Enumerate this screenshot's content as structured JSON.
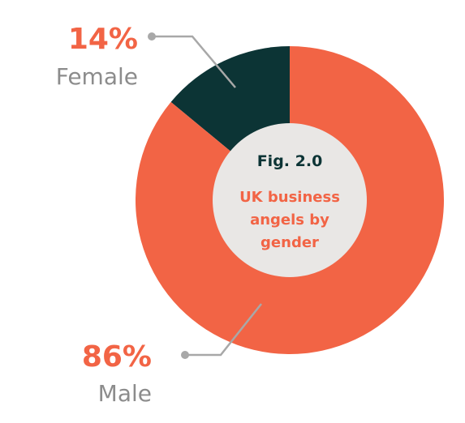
{
  "chart_data": {
    "type": "pie",
    "title": "Fig. 2.0",
    "subtitle": "UK business angels by gender",
    "categories": [
      "Female",
      "Male"
    ],
    "values": [
      14,
      86
    ],
    "value_labels": [
      "14%",
      "86%"
    ],
    "colors": [
      "#0c3435",
      "#f26445"
    ]
  }
}
